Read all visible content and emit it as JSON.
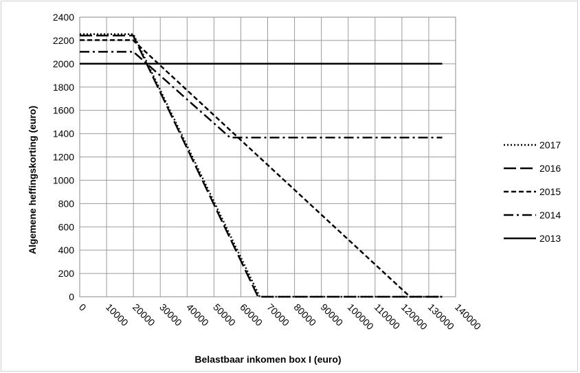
{
  "chart_data": {
    "type": "line",
    "title": "",
    "xlabel": "Belastbaar inkomen box I (euro)",
    "ylabel": "Algemene heffingskorting (euro)",
    "xlim": [
      0,
      140000
    ],
    "ylim": [
      0,
      2400
    ],
    "x_ticks": [
      "0",
      "10000",
      "20000",
      "30000",
      "40000",
      "50000",
      "60000",
      "70000",
      "80000",
      "90000",
      "100000",
      "110000",
      "120000",
      "130000",
      "140000"
    ],
    "y_ticks": [
      "0",
      "200",
      "400",
      "600",
      "800",
      "1000",
      "1200",
      "1400",
      "1600",
      "1800",
      "2000",
      "2200",
      "2400"
    ],
    "grid": true,
    "legend_position": "right",
    "series": [
      {
        "name": "2017",
        "style": "dotted",
        "points": [
          [
            0,
            2254
          ],
          [
            19982,
            2254
          ],
          [
            67068,
            0
          ],
          [
            135000,
            0
          ]
        ]
      },
      {
        "name": "2016",
        "style": "long-dash",
        "points": [
          [
            0,
            2242
          ],
          [
            19922,
            2242
          ],
          [
            66417,
            0
          ],
          [
            135000,
            0
          ]
        ]
      },
      {
        "name": "2015",
        "style": "dashed",
        "points": [
          [
            0,
            2203
          ],
          [
            19822,
            2203
          ],
          [
            123000,
            0
          ],
          [
            135000,
            0
          ]
        ]
      },
      {
        "name": "2014",
        "style": "dash-dot",
        "points": [
          [
            0,
            2103
          ],
          [
            20000,
            2103
          ],
          [
            56000,
            1366
          ],
          [
            135000,
            1366
          ]
        ]
      },
      {
        "name": "2013",
        "style": "solid",
        "points": [
          [
            0,
            2001
          ],
          [
            135000,
            2001
          ]
        ]
      }
    ]
  }
}
